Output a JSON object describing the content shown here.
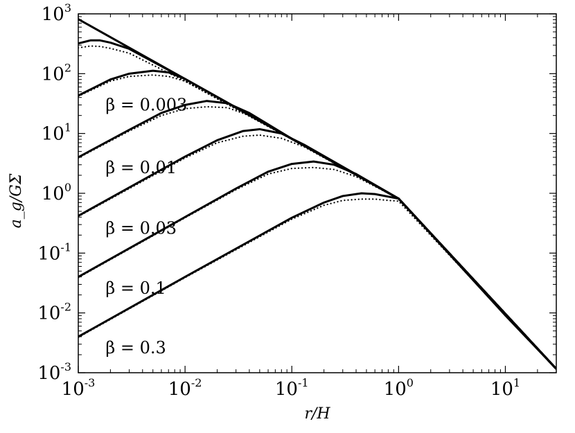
{
  "chart_data": {
    "type": "line",
    "title": "",
    "xlabel": "r/H",
    "ylabel": "a_g/GΣ",
    "x_scale": "log",
    "y_scale": "log",
    "xlim": [
      0.001,
      30
    ],
    "ylim": [
      0.001,
      1000
    ],
    "grid": false,
    "x_ticks": [
      {
        "value": 0.001,
        "base": "10",
        "exp": "-3"
      },
      {
        "value": 0.01,
        "base": "10",
        "exp": "-2"
      },
      {
        "value": 0.1,
        "base": "10",
        "exp": "-1"
      },
      {
        "value": 1,
        "base": "10",
        "exp": "0"
      },
      {
        "value": 10,
        "base": "10",
        "exp": "1"
      }
    ],
    "y_ticks": [
      {
        "value": 0.001,
        "base": "10",
        "exp": "-3"
      },
      {
        "value": 0.01,
        "base": "10",
        "exp": "-2"
      },
      {
        "value": 0.1,
        "base": "10",
        "exp": "-1"
      },
      {
        "value": 1,
        "base": "10",
        "exp": "0"
      },
      {
        "value": 10,
        "base": "10",
        "exp": "1"
      },
      {
        "value": 100,
        "base": "10",
        "exp": "2"
      },
      {
        "value": 1000,
        "base": "10",
        "exp": "3"
      }
    ],
    "annotations": [
      {
        "text": "β = 0.003",
        "x": 0.0018,
        "y": 30
      },
      {
        "text": "β = 0.01",
        "x": 0.0018,
        "y": 2.7
      },
      {
        "text": "β = 0.03",
        "x": 0.0018,
        "y": 0.26
      },
      {
        "text": "β = 0.1",
        "x": 0.0018,
        "y": 0.026
      },
      {
        "text": "β = 0.3",
        "x": 0.0018,
        "y": 0.0026
      }
    ],
    "series": [
      {
        "style": "solid",
        "x": [
          0.001,
          0.01,
          0.1,
          1,
          10,
          30
        ],
        "y": [
          815,
          81.5,
          8.15,
          0.815,
          0.0091,
          0.00116
        ]
      },
      {
        "style": "solid",
        "x": [
          0.001,
          0.0013,
          0.0016,
          0.002,
          0.003,
          0.01,
          0.1,
          1,
          30
        ],
        "y": [
          320,
          360,
          360,
          330,
          260,
          81.5,
          8.15,
          0.815,
          0.00116
        ]
      },
      {
        "style": "dotted",
        "x": [
          0.001,
          0.0013,
          0.0016,
          0.002,
          0.003,
          0.01,
          0.1,
          1,
          30
        ],
        "y": [
          270,
          290,
          285,
          265,
          220,
          75,
          8.0,
          0.815,
          0.00116
        ]
      },
      {
        "style": "solid",
        "x": [
          0.001,
          0.002,
          0.003,
          0.005,
          0.007,
          0.01,
          0.1,
          1,
          30
        ],
        "y": [
          43,
          80,
          100,
          112,
          105,
          81.5,
          8.15,
          0.815,
          0.00116
        ]
      },
      {
        "style": "dotted",
        "x": [
          0.001,
          0.002,
          0.003,
          0.005,
          0.007,
          0.01,
          0.1,
          1,
          30
        ],
        "y": [
          42,
          75,
          90,
          95,
          90,
          75,
          8.0,
          0.815,
          0.00116
        ]
      },
      {
        "style": "solid",
        "x": [
          0.001,
          0.003,
          0.006,
          0.01,
          0.016,
          0.025,
          0.04,
          0.1,
          1,
          30
        ],
        "y": [
          4.0,
          11.5,
          22,
          30,
          35,
          32,
          22,
          8.15,
          0.815,
          0.00116
        ]
      },
      {
        "style": "dotted",
        "x": [
          0.001,
          0.003,
          0.006,
          0.01,
          0.016,
          0.025,
          0.04,
          0.1,
          1,
          30
        ],
        "y": [
          3.9,
          11,
          20,
          26,
          28,
          27,
          20,
          8.0,
          0.815,
          0.00116
        ]
      },
      {
        "style": "solid",
        "x": [
          0.001,
          0.003,
          0.01,
          0.02,
          0.035,
          0.05,
          0.08,
          0.13,
          1,
          30
        ],
        "y": [
          0.42,
          1.25,
          4.1,
          7.7,
          11.0,
          11.8,
          10.0,
          6.5,
          0.815,
          0.00116
        ]
      },
      {
        "style": "dotted",
        "x": [
          0.001,
          0.003,
          0.01,
          0.02,
          0.035,
          0.05,
          0.08,
          0.13,
          1,
          30
        ],
        "y": [
          0.41,
          1.2,
          3.9,
          7.0,
          9.0,
          9.4,
          8.3,
          6.0,
          0.815,
          0.00116
        ]
      },
      {
        "style": "solid",
        "x": [
          0.001,
          0.01,
          0.03,
          0.06,
          0.1,
          0.16,
          0.25,
          0.4,
          1,
          30
        ],
        "y": [
          0.04,
          0.4,
          1.2,
          2.3,
          3.1,
          3.4,
          3.0,
          2.1,
          0.815,
          0.00116
        ]
      },
      {
        "style": "dotted",
        "x": [
          0.001,
          0.01,
          0.03,
          0.06,
          0.1,
          0.16,
          0.25,
          0.4,
          1,
          30
        ],
        "y": [
          0.039,
          0.39,
          1.15,
          2.1,
          2.6,
          2.7,
          2.5,
          1.9,
          0.815,
          0.00116
        ]
      },
      {
        "style": "solid",
        "x": [
          0.001,
          0.01,
          0.1,
          0.2,
          0.3,
          0.45,
          0.6,
          0.8,
          1,
          30
        ],
        "y": [
          0.004,
          0.04,
          0.39,
          0.7,
          0.9,
          1.0,
          0.97,
          0.88,
          0.815,
          0.00116
        ]
      },
      {
        "style": "dotted",
        "x": [
          0.001,
          0.01,
          0.1,
          0.2,
          0.3,
          0.45,
          0.6,
          0.8,
          1,
          30
        ],
        "y": [
          0.0039,
          0.039,
          0.37,
          0.63,
          0.76,
          0.8,
          0.8,
          0.76,
          0.74,
          0.00116
        ]
      }
    ]
  }
}
